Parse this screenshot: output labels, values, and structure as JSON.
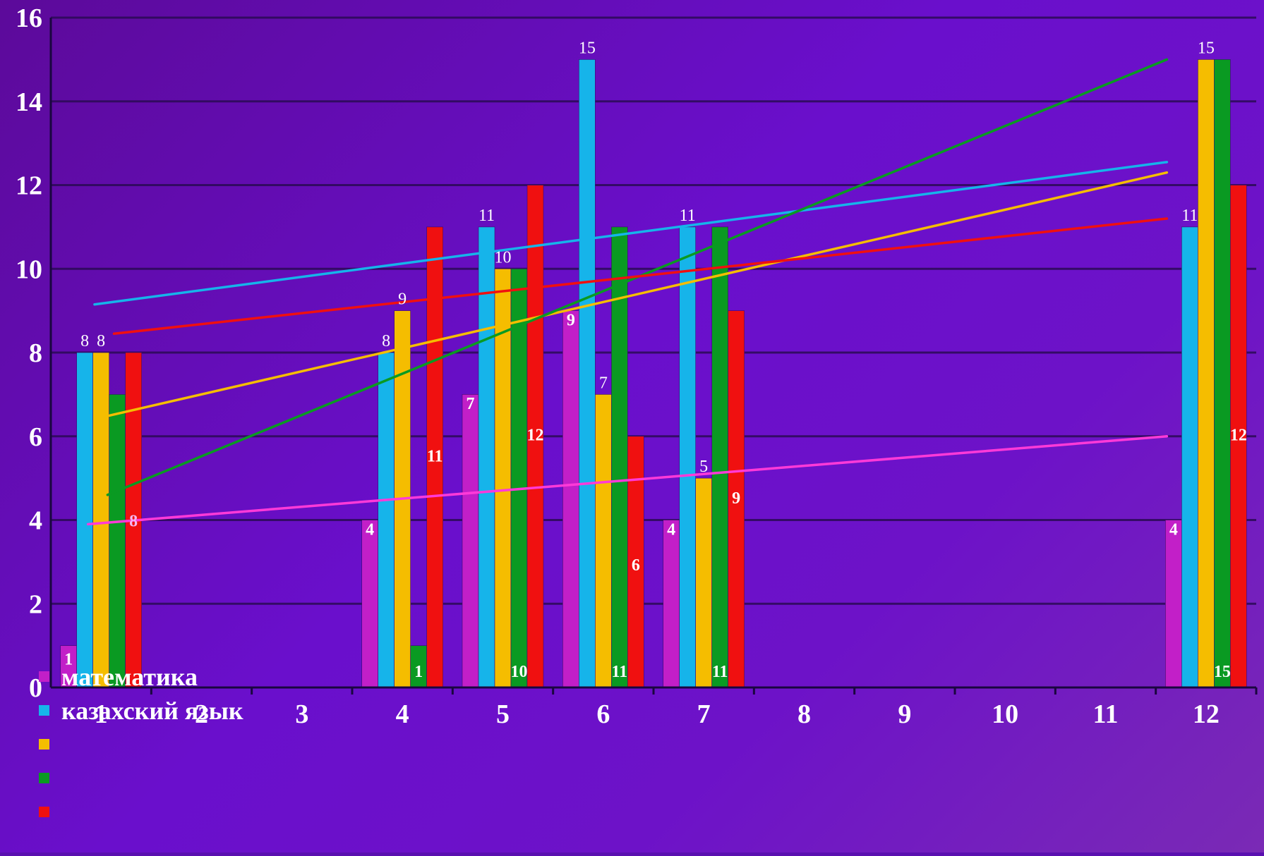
{
  "chart_data": {
    "type": "bar",
    "title": "",
    "xlabel": "",
    "ylabel": "",
    "categories": [
      "1",
      "2",
      "3",
      "4",
      "5",
      "6",
      "7",
      "8",
      "9",
      "10",
      "11",
      "12"
    ],
    "ylim": [
      0,
      16
    ],
    "yticks": [
      0,
      2,
      4,
      6,
      8,
      10,
      12,
      14,
      16
    ],
    "grid": true,
    "legend_position": "bottom-left",
    "series": [
      {
        "name": "математика",
        "color": "#c21fc8",
        "values": [
          1,
          null,
          null,
          4,
          7,
          9,
          4,
          null,
          null,
          null,
          null,
          4
        ],
        "trend": [
          3.9,
          6.0
        ]
      },
      {
        "name": "казахский язык",
        "color": "#16b4ea",
        "values": [
          8,
          null,
          null,
          8,
          11,
          15,
          11,
          null,
          null,
          null,
          null,
          11
        ],
        "trend": [
          9.15,
          12.55
        ]
      },
      {
        "name": "",
        "color": "#f5bd00",
        "values": [
          8,
          null,
          null,
          9,
          10,
          7,
          5,
          null,
          null,
          null,
          null,
          15
        ],
        "trend": [
          6.45,
          12.3
        ]
      },
      {
        "name": "",
        "color": "#0a9a22",
        "values": [
          7,
          null,
          null,
          1,
          10,
          11,
          11,
          null,
          null,
          null,
          null,
          15
        ],
        "trend": [
          4.6,
          15.0
        ]
      },
      {
        "name": "",
        "color": "#f01010",
        "values": [
          8,
          null,
          null,
          11,
          12,
          6,
          9,
          null,
          null,
          null,
          null,
          12
        ],
        "trend": [
          8.45,
          11.2
        ]
      }
    ],
    "data_labels": [
      {
        "category": "1",
        "text": "1",
        "y": 0.55,
        "series": 0,
        "color": "#ffffff",
        "bold": true
      },
      {
        "category": "1",
        "text": "8",
        "y": 8.15,
        "series": 1,
        "color": "#ffffff",
        "bold": false
      },
      {
        "category": "1",
        "text": "8",
        "y": 8.15,
        "series": 2,
        "color": "#ffffff",
        "bold": false
      },
      {
        "category": "1",
        "text": "8",
        "y": 3.85,
        "series": 4,
        "color": "#f4b7ef",
        "bold": true
      },
      {
        "category": "4",
        "text": "4",
        "y": 3.65,
        "series": 0,
        "color": "#ffffff",
        "bold": true
      },
      {
        "category": "4",
        "text": "8",
        "y": 8.15,
        "series": 1,
        "color": "#ffffff",
        "bold": false
      },
      {
        "category": "4",
        "text": "9",
        "y": 9.15,
        "series": 2,
        "color": "#ffffff",
        "bold": false
      },
      {
        "category": "4",
        "text": "1",
        "y": 0.25,
        "series": 3,
        "color": "#ffffff",
        "bold": true
      },
      {
        "category": "4",
        "text": "11",
        "y": 5.4,
        "series": 4,
        "color": "#ffffff",
        "bold": true
      },
      {
        "category": "5",
        "text": "7",
        "y": 6.65,
        "series": 0,
        "color": "#ffffff",
        "bold": true
      },
      {
        "category": "5",
        "text": "11",
        "y": 11.15,
        "series": 1,
        "color": "#ffffff",
        "bold": false
      },
      {
        "category": "5",
        "text": "10",
        "y": 10.15,
        "series": 2,
        "color": "#ffffff",
        "bold": false
      },
      {
        "category": "5",
        "text": "10",
        "y": 0.25,
        "series": 3,
        "color": "#ffffff",
        "bold": true
      },
      {
        "category": "5",
        "text": "12",
        "y": 5.9,
        "series": 4,
        "color": "#ffffff",
        "bold": true
      },
      {
        "category": "6",
        "text": "9",
        "y": 8.65,
        "series": 0,
        "color": "#ffffff",
        "bold": true
      },
      {
        "category": "6",
        "text": "15",
        "y": 15.15,
        "series": 1,
        "color": "#ffffff",
        "bold": false
      },
      {
        "category": "6",
        "text": "7",
        "y": 7.15,
        "series": 2,
        "color": "#ffffff",
        "bold": false
      },
      {
        "category": "6",
        "text": "11",
        "y": 0.25,
        "series": 3,
        "color": "#ffffff",
        "bold": true
      },
      {
        "category": "6",
        "text": "6",
        "y": 2.8,
        "series": 4,
        "color": "#ffffff",
        "bold": true
      },
      {
        "category": "7",
        "text": "4",
        "y": 3.65,
        "series": 0,
        "color": "#ffffff",
        "bold": true
      },
      {
        "category": "7",
        "text": "11",
        "y": 11.15,
        "series": 1,
        "color": "#ffffff",
        "bold": false
      },
      {
        "category": "7",
        "text": "5",
        "y": 5.15,
        "series": 2,
        "color": "#ffffff",
        "bold": false
      },
      {
        "category": "7",
        "text": "11",
        "y": 0.25,
        "series": 3,
        "color": "#ffffff",
        "bold": true
      },
      {
        "category": "7",
        "text": "9",
        "y": 4.4,
        "series": 4,
        "color": "#ffffff",
        "bold": true
      },
      {
        "category": "12",
        "text": "4",
        "y": 3.65,
        "series": 0,
        "color": "#ffffff",
        "bold": true
      },
      {
        "category": "12",
        "text": "11",
        "y": 11.15,
        "series": 1,
        "color": "#ffffff",
        "bold": false
      },
      {
        "category": "12",
        "text": "15",
        "y": 15.15,
        "series": 2,
        "color": "#ffffff",
        "bold": false
      },
      {
        "category": "12",
        "text": "15",
        "y": 0.25,
        "series": 3,
        "color": "#ffffff",
        "bold": true
      },
      {
        "category": "12",
        "text": "12",
        "y": 5.9,
        "series": 4,
        "color": "#ffffff",
        "bold": true
      }
    ]
  }
}
